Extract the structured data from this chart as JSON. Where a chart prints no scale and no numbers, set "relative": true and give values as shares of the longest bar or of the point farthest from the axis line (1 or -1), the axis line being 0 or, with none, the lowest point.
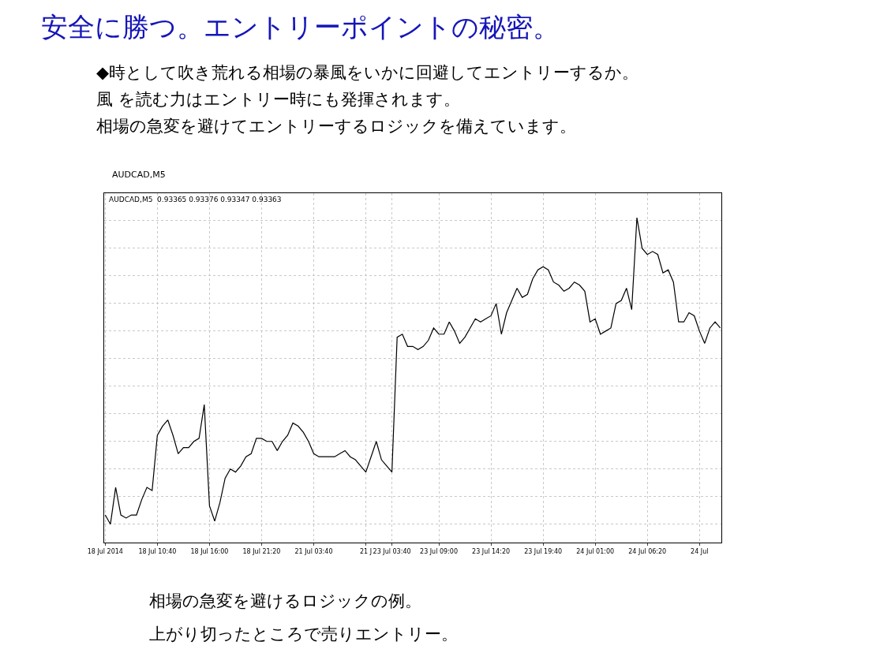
{
  "chart_data": {
    "type": "line",
    "relative": true,
    "title": "安全に勝つ。エントリーポイントの秘密。",
    "subtitle": "◆時として吹き荒れる相場の暴風をいかに回避してエントリーするか。",
    "annotations": [
      "風 を読む力はエントリー時にも発揮されます。",
      "相場の急変を避けてエントリーするロジックを備えています。",
      "AUDCAD,M5",
      "AUDCAD,M5  0.93365 0.93376 0.93347 0.93363",
      "相場の急変を避けるロジックの例。",
      "上がり切ったところで売りエントリー。"
    ],
    "categories": [
      "18 Jul 2014",
      null,
      null,
      null,
      null,
      null,
      null,
      null,
      null,
      null,
      "18 Jul 10:40",
      null,
      null,
      null,
      null,
      null,
      null,
      null,
      null,
      null,
      "18 Jul 16:00",
      null,
      null,
      null,
      null,
      null,
      null,
      null,
      null,
      null,
      "18 Jul 21:20",
      null,
      null,
      null,
      null,
      null,
      null,
      null,
      null,
      null,
      "21 Jul 03:40",
      null,
      null,
      null,
      null,
      null,
      null,
      null,
      null,
      null,
      "21 J",
      null,
      null,
      null,
      null,
      "23 Jul 03:40",
      null,
      null,
      null,
      null,
      null,
      null,
      null,
      null,
      "23 Jul 09:00",
      null,
      null,
      null,
      null,
      null,
      null,
      null,
      null,
      null,
      "23 Jul 14:20",
      null,
      null,
      null,
      null,
      null,
      null,
      null,
      null,
      null,
      "23 Jul 19:40",
      null,
      null,
      null,
      null,
      null,
      null,
      null,
      null,
      null,
      "24 Jul 01:00",
      null,
      null,
      null,
      null,
      null,
      null,
      null,
      null,
      null,
      "24 Jul 06:20",
      null,
      null,
      null,
      null,
      null,
      null,
      null,
      null,
      null,
      "24 Jul",
      null,
      null,
      null,
      null
    ],
    "series": [
      {
        "color": "#000000",
        "values": [
          0.03,
          0,
          0.12,
          0.03,
          0.02,
          0.03,
          0.03,
          0.08,
          0.12,
          0.11,
          0.29,
          0.32,
          0.34,
          0.29,
          0.23,
          0.25,
          0.25,
          0.27,
          0.28,
          0.39,
          0.06,
          0.01,
          0.07,
          0.15,
          0.18,
          0.17,
          0.19,
          0.22,
          0.23,
          0.28,
          0.28,
          0.27,
          0.27,
          0.24,
          0.27,
          0.29,
          0.33,
          0.32,
          0.3,
          0.27,
          0.23,
          0.22,
          0.22,
          0.22,
          0.22,
          0.23,
          0.24,
          0.22,
          0.21,
          0.19,
          0.17,
          0.22,
          0.27,
          0.21,
          0.19,
          0.17,
          0.61,
          0.62,
          0.58,
          0.58,
          0.57,
          0.58,
          0.6,
          0.64,
          0.62,
          0.62,
          0.66,
          0.63,
          0.59,
          0.61,
          0.64,
          0.67,
          0.66,
          0.67,
          0.68,
          0.72,
          0.62,
          0.69,
          0.73,
          0.77,
          0.74,
          0.75,
          0.8,
          0.83,
          0.84,
          0.83,
          0.79,
          0.78,
          0.76,
          0.77,
          0.79,
          0.78,
          0.76,
          0.66,
          0.67,
          0.62,
          0.63,
          0.64,
          0.72,
          0.73,
          0.77,
          0.7,
          1,
          0.9,
          0.88,
          0.89,
          0.88,
          0.82,
          0.83,
          0.79,
          0.66,
          0.66,
          0.69,
          0.68,
          0.63,
          0.59,
          0.64,
          0.66,
          0.64
        ]
      }
    ],
    "grid": true,
    "marker": "none",
    "line_style": "solid"
  }
}
